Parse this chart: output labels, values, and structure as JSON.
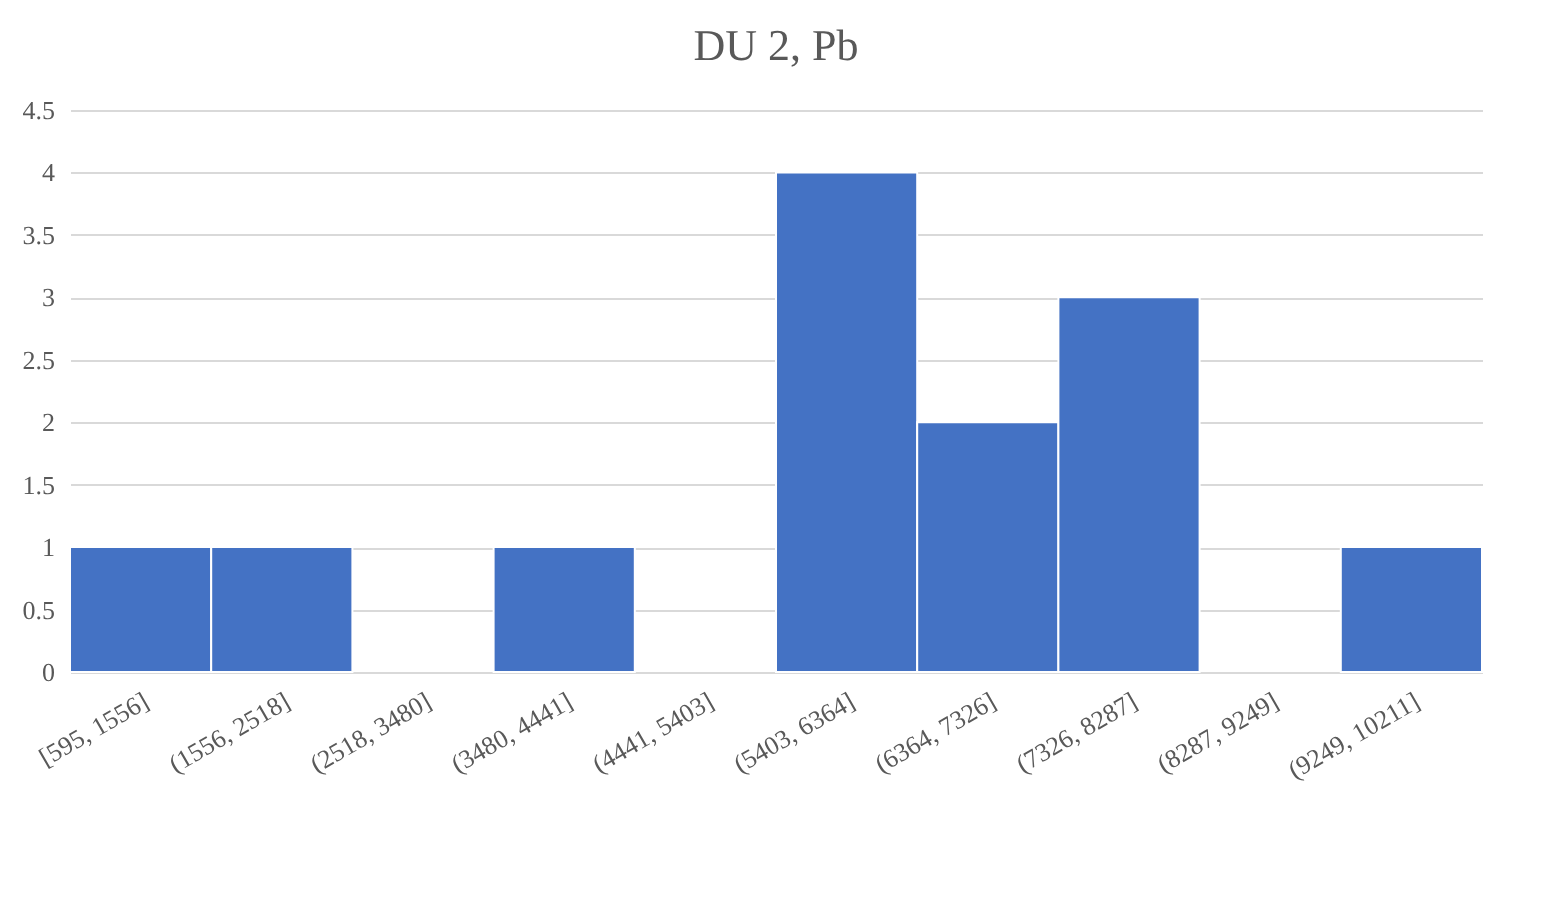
{
  "chart_data": {
    "type": "bar",
    "title": "DU 2, Pb",
    "categories": [
      "[595, 1556]",
      "(1556, 2518]",
      "(2518, 3480]",
      "(3480, 4441]",
      "(4441, 5403]",
      "(5403, 6364]",
      "(6364, 7326]",
      "(7326, 8287]",
      "(8287, 9249]",
      "(9249, 10211]"
    ],
    "values": [
      1,
      1,
      0,
      1,
      0,
      4,
      2,
      3,
      0,
      1
    ],
    "color": "#4472c4",
    "ylim": [
      0,
      4.5
    ],
    "yticks": [
      0,
      0.5,
      1,
      1.5,
      2,
      2.5,
      3,
      3.5,
      4,
      4.5
    ],
    "grid": "y"
  }
}
